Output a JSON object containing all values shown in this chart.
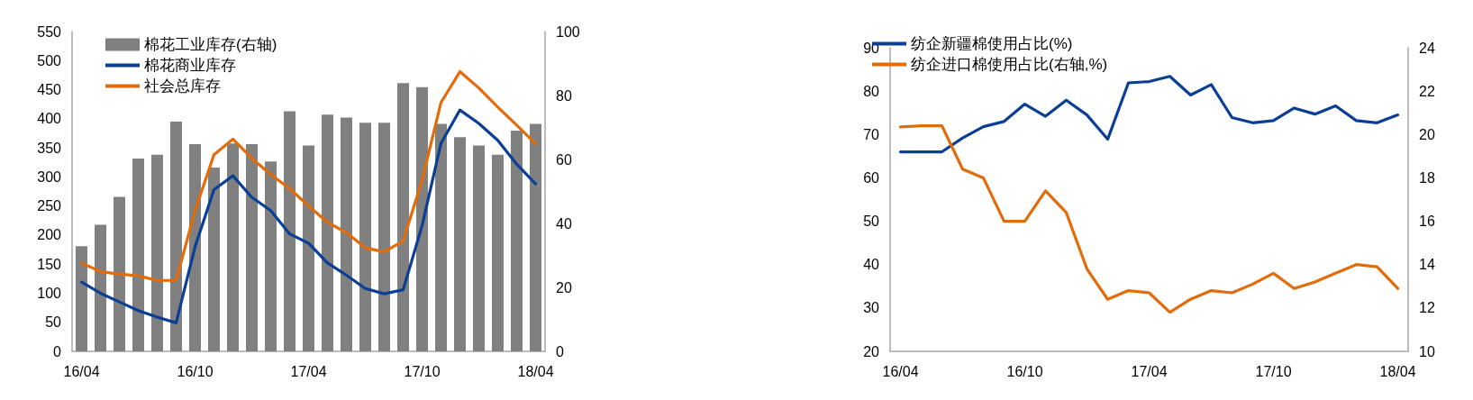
{
  "chart_data": [
    {
      "type": "line",
      "categories": [
        "16/04",
        null,
        null,
        null,
        null,
        null,
        "16/10",
        null,
        null,
        null,
        null,
        null,
        "17/04",
        null,
        null,
        null,
        null,
        null,
        "17/10",
        null,
        null,
        null,
        null,
        null,
        "18/04"
      ],
      "series": [
        {
          "name": "棉花工业库存(右轴)",
          "type": "bar",
          "axis": "y2",
          "color": "#808080",
          "values": [
            32.9,
            39.6,
            48.3,
            60.3,
            61.5,
            71.8,
            64.8,
            57.5,
            65,
            64.8,
            59.4,
            75.1,
            64.4,
            74.0,
            73.1,
            71.5,
            71.5,
            83.9,
            82.6,
            71.1,
            67.0,
            64.4,
            61.5,
            69.0,
            71.1
          ]
        },
        {
          "name": "棉花商业库存",
          "color": "#0a3f95",
          "values": [
            119,
            100,
            85,
            70,
            59,
            49,
            180,
            278,
            302,
            265,
            242,
            202,
            186,
            152,
            131,
            108,
            99,
            106,
            216,
            358,
            415,
            392,
            363,
            322,
            288
          ]
        },
        {
          "name": "社会总库存",
          "color": "#e36c0a",
          "values": [
            152,
            137,
            133,
            130,
            122,
            122,
            242,
            338,
            365,
            332,
            304,
            280,
            250,
            222,
            204,
            178,
            171,
            190,
            294,
            428,
            481,
            453,
            420,
            389,
            357
          ]
        }
      ],
      "ylim": [
        0,
        550
      ],
      "yticks": [
        0,
        50,
        100,
        150,
        200,
        250,
        300,
        350,
        400,
        450,
        500,
        550
      ],
      "y2lim": [
        0,
        100
      ],
      "y2ticks": [
        0,
        20,
        40,
        60,
        80,
        100
      ],
      "legend": "top left",
      "marker": "none",
      "line_style": "solid",
      "grid": false
    },
    {
      "type": "line",
      "categories": [
        "16/04",
        null,
        null,
        null,
        null,
        null,
        "16/10",
        null,
        null,
        null,
        null,
        null,
        "17/04",
        null,
        null,
        null,
        null,
        null,
        "17/10",
        null,
        null,
        null,
        null,
        null,
        "18/04"
      ],
      "series": [
        {
          "name": "纺企新疆棉使用占比(%)",
          "color": "#0a3f95",
          "values": [
            66,
            66,
            66,
            69.2,
            71.8,
            73,
            77,
            74.2,
            77.9,
            74.5,
            68.9,
            81.9,
            82.2,
            83.4,
            79.1,
            81.5,
            73.9,
            72.7,
            73.2,
            76.1,
            74.7,
            76.6,
            73.2,
            72.7,
            74.5
          ]
        },
        {
          "name": "纺企进口棉使用占比(右轴,%)",
          "axis": "y2",
          "color": "#e36c0a",
          "values": [
            20.35,
            20.4,
            20.4,
            18.4,
            18.0,
            16.0,
            16.0,
            17.4,
            16.4,
            13.8,
            12.4,
            12.8,
            12.7,
            11.8,
            12.4,
            12.8,
            12.7,
            13.1,
            13.6,
            12.9,
            13.2,
            13.6,
            14.0,
            13.9,
            12.9
          ]
        }
      ],
      "ylim": [
        20,
        90
      ],
      "yticks": [
        20,
        30,
        40,
        50,
        60,
        70,
        80,
        90
      ],
      "y2lim": [
        10,
        24
      ],
      "y2ticks": [
        10,
        12,
        14,
        16,
        18,
        20,
        22,
        24
      ],
      "legend": "top left",
      "marker": "none",
      "line_style": "solid",
      "grid": false
    }
  ]
}
